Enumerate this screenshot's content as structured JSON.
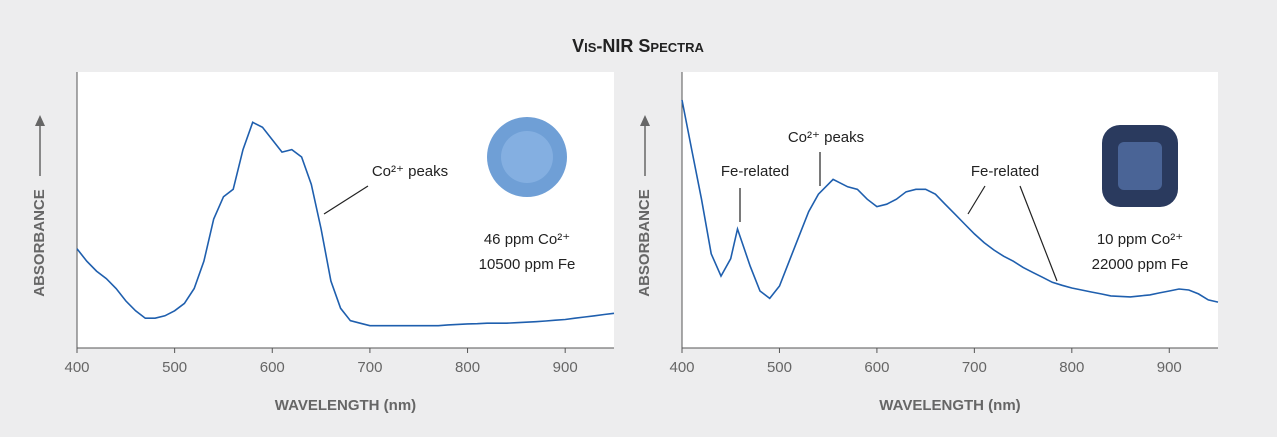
{
  "title": "Vis-NIR Spectra",
  "chart_data": [
    {
      "type": "line",
      "xlabel": "WAVELENGTH (nm)",
      "ylabel": "ABSORBANCE",
      "color": "#1f5fae",
      "xlim": [
        400,
        950
      ],
      "xticks": [
        400,
        500,
        600,
        700,
        800,
        900
      ],
      "ylim": [
        0,
        100
      ],
      "annotations": [
        "Co²⁺ peaks",
        "46 ppm Co²⁺",
        "10500 ppm Fe"
      ],
      "x": [
        400,
        410,
        420,
        430,
        440,
        450,
        460,
        470,
        480,
        490,
        500,
        510,
        520,
        530,
        540,
        550,
        560,
        570,
        580,
        590,
        600,
        610,
        620,
        630,
        640,
        650,
        660,
        670,
        680,
        690,
        700,
        710,
        720,
        730,
        740,
        750,
        760,
        770,
        780,
        790,
        800,
        810,
        820,
        830,
        840,
        850,
        860,
        870,
        880,
        890,
        900,
        910,
        920,
        930,
        940,
        950
      ],
      "values": [
        40,
        35,
        31,
        28,
        24,
        19,
        15,
        12,
        12,
        13,
        15,
        18,
        24,
        35,
        52,
        61,
        64,
        80,
        91,
        89,
        84,
        79,
        80,
        77,
        66,
        48,
        27,
        16,
        11,
        10,
        9,
        9,
        9,
        9,
        9,
        9,
        9,
        9,
        9.3,
        9.5,
        9.7,
        9.8,
        10,
        10,
        10,
        10.2,
        10.4,
        10.6,
        10.9,
        11.2,
        11.5,
        12,
        12.5,
        13,
        13.5,
        14
      ]
    },
    {
      "type": "line",
      "xlabel": "WAVELENGTH (nm)",
      "ylabel": "ABSORBANCE",
      "color": "#1f5fae",
      "xlim": [
        400,
        950
      ],
      "xticks": [
        400,
        500,
        600,
        700,
        800,
        900
      ],
      "ylim": [
        0,
        100
      ],
      "annotations": [
        "Fe-related",
        "Co²⁺ peaks",
        "Fe-related",
        "10 ppm Co²⁺",
        "22000 ppm Fe"
      ],
      "x": [
        400,
        410,
        420,
        430,
        440,
        450,
        457,
        463,
        470,
        480,
        490,
        500,
        510,
        520,
        530,
        540,
        550,
        555,
        560,
        570,
        580,
        590,
        600,
        610,
        620,
        630,
        640,
        650,
        660,
        670,
        680,
        690,
        700,
        710,
        720,
        730,
        740,
        750,
        760,
        770,
        780,
        790,
        800,
        810,
        820,
        830,
        840,
        850,
        860,
        870,
        880,
        890,
        900,
        910,
        920,
        930,
        940,
        950
      ],
      "values": [
        100,
        80,
        60,
        38,
        29,
        36,
        48,
        41,
        33,
        23,
        20,
        25,
        35,
        45,
        55,
        62,
        66,
        68,
        67,
        65,
        64,
        60,
        57,
        58,
        60,
        63,
        64,
        64,
        62,
        58,
        54,
        50,
        46,
        42.5,
        39.5,
        37,
        35,
        32.5,
        30.5,
        28.5,
        26.5,
        25.3,
        24.2,
        23.4,
        22.6,
        21.8,
        21,
        20.8,
        20.6,
        21,
        21.4,
        22.2,
        23,
        23.8,
        23.4,
        21.8,
        19.4,
        18.5
      ]
    }
  ]
}
